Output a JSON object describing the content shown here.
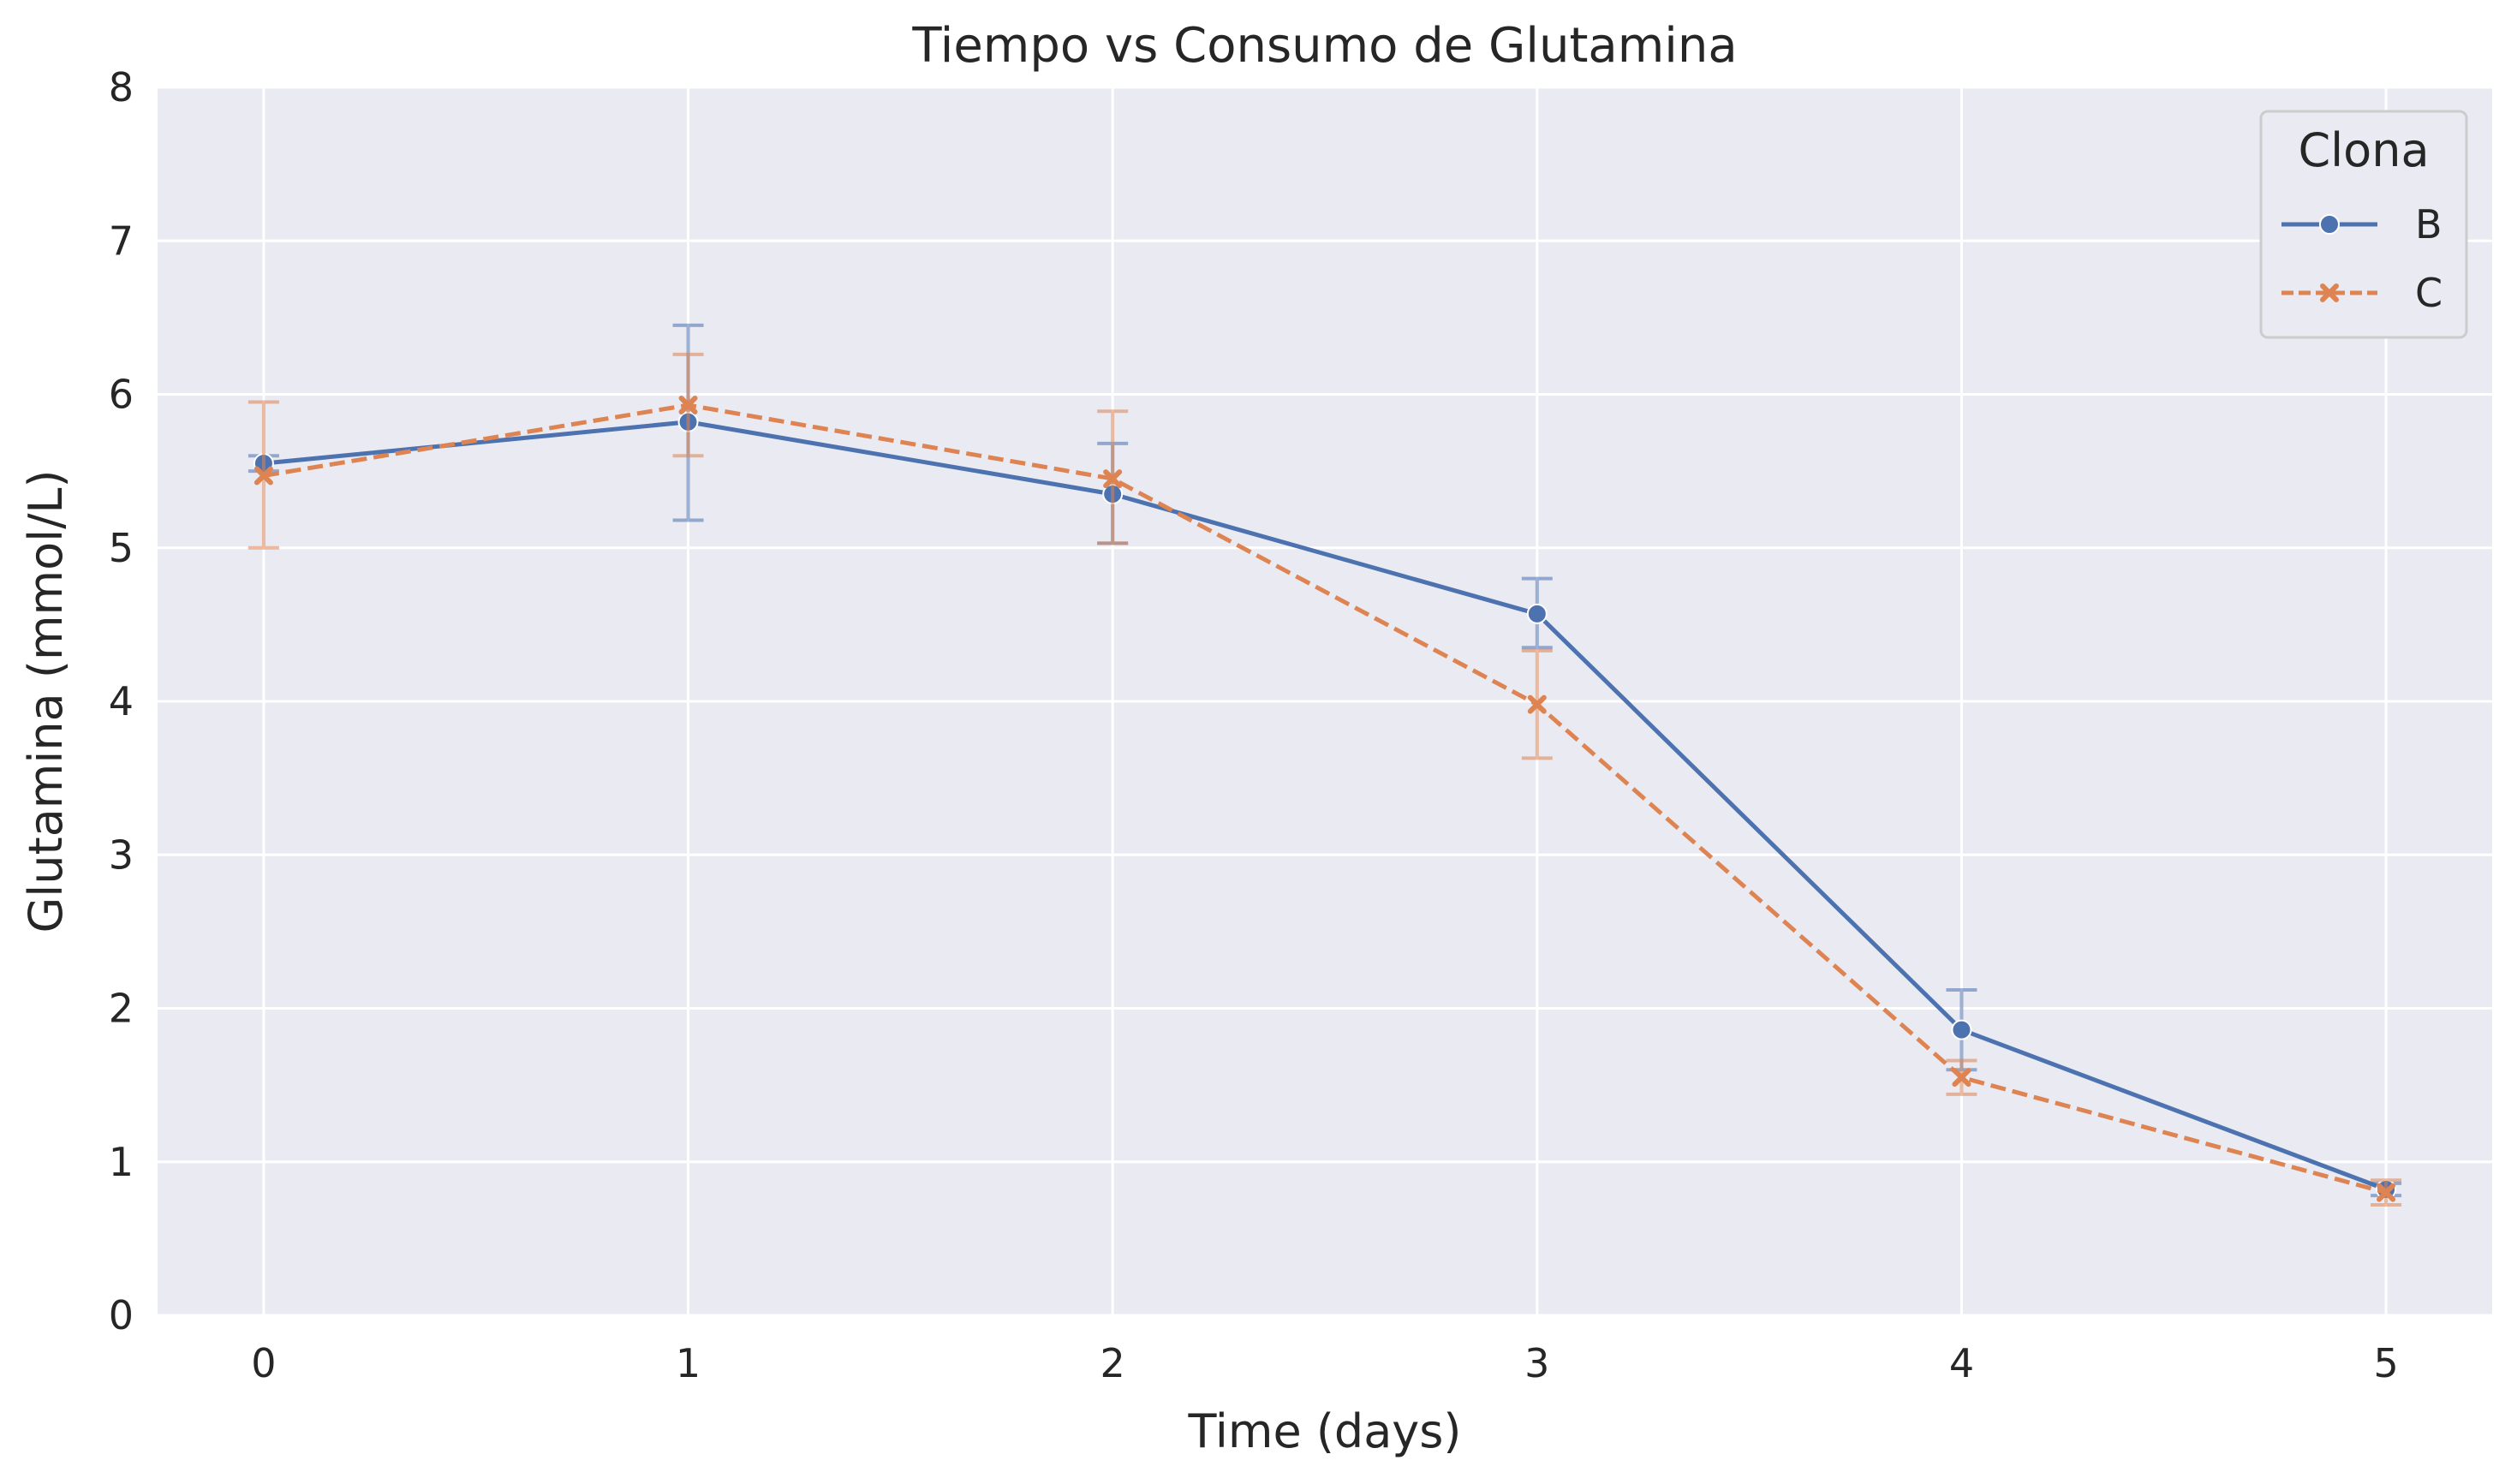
{
  "chart_data": {
    "type": "line",
    "title": "Tiempo vs Consumo de Glutamina",
    "xlabel": "Time (days)",
    "ylabel": "Glutamina (mmol/L)",
    "xlim": [
      -0.25,
      5.25
    ],
    "ylim": [
      0,
      8
    ],
    "x": [
      0,
      1,
      2,
      3,
      4,
      5
    ],
    "xticks": [
      "0",
      "1",
      "2",
      "3",
      "4",
      "5"
    ],
    "yticks": [
      "0",
      "1",
      "2",
      "3",
      "4",
      "5",
      "6",
      "7",
      "8"
    ],
    "grid": true,
    "legend": {
      "title": "Clona",
      "position": "top-right"
    },
    "series": [
      {
        "name": "B",
        "color": "#4c72b0",
        "marker": "circle",
        "linestyle": "solid",
        "values": [
          5.55,
          5.82,
          5.35,
          4.57,
          1.86,
          0.82
        ],
        "err_low": [
          5.5,
          5.18,
          5.03,
          4.35,
          1.6,
          0.78
        ],
        "err_high": [
          5.6,
          6.45,
          5.68,
          4.8,
          2.12,
          0.86
        ]
      },
      {
        "name": "C",
        "color": "#dd8452",
        "marker": "x",
        "linestyle": "dashed",
        "values": [
          5.47,
          5.93,
          5.45,
          3.98,
          1.55,
          0.8
        ],
        "err_low": [
          5.0,
          5.6,
          5.03,
          3.63,
          1.44,
          0.72
        ],
        "err_high": [
          5.95,
          6.26,
          5.89,
          4.33,
          1.66,
          0.88
        ]
      }
    ]
  }
}
